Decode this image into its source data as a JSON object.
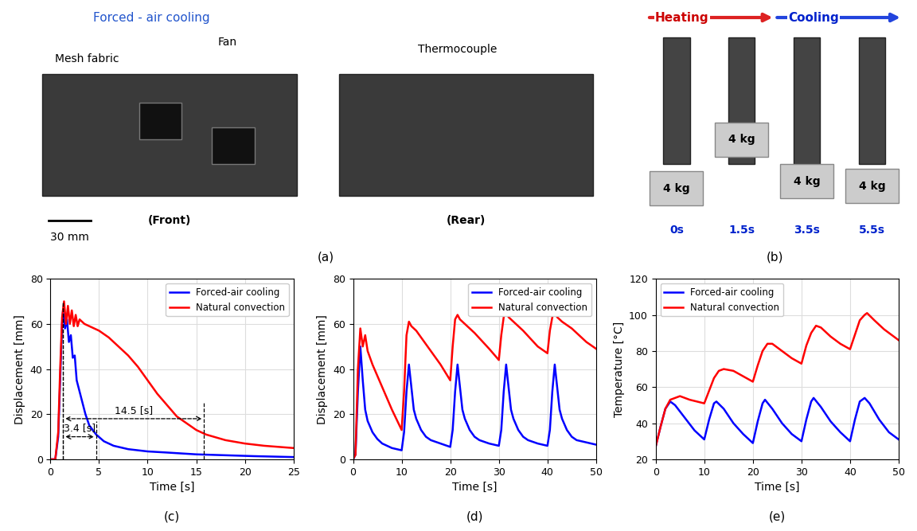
{
  "photos": [
    {
      "caption": "(a)",
      "texts": {
        "airflow": "Forced - air cooling",
        "fan": "Fan",
        "fabric": "Mesh fabric",
        "scale": "30 mm",
        "front": "(Front)",
        "thermocouple": "Thermocouple",
        "rear": "(Rear)"
      }
    },
    {
      "caption": "(b)",
      "texts": {
        "heating": "Heating",
        "cooling": "Cooling",
        "weight": "4 kg",
        "times": [
          "0s",
          "1.5s",
          "3.5s",
          "5.5s"
        ]
      }
    }
  ],
  "chart_data": [
    {
      "type": "line",
      "caption": "(c)",
      "x_label": "Time [s]",
      "y_label": "Displacement [mm]",
      "xlim": [
        0,
        25
      ],
      "xticks": [
        0,
        5,
        10,
        15,
        20,
        25
      ],
      "ylim": [
        0,
        80
      ],
      "yticks": [
        0,
        20,
        40,
        60,
        80
      ],
      "grid": true,
      "legend": "upper right",
      "series": [
        {
          "name": "Forced-air cooling",
          "color": "#0000ff",
          "x": [
            0,
            0.5,
            0.8,
            1.0,
            1.2,
            1.3,
            1.5,
            1.7,
            1.9,
            2.1,
            2.3,
            2.5,
            2.7,
            3.0,
            3.3,
            3.6,
            4.0,
            4.7,
            5.5,
            6.5,
            8,
            10,
            12,
            15,
            18,
            21,
            25
          ],
          "values": [
            0,
            0,
            10,
            35,
            60,
            66,
            58,
            62,
            52,
            55,
            45,
            46,
            35,
            30,
            25,
            20,
            15,
            11,
            8,
            6,
            4.5,
            3.5,
            3,
            2.2,
            1.8,
            1.4,
            1.0
          ]
        },
        {
          "name": "Natural convection",
          "color": "#ff0000",
          "x": [
            0,
            0.5,
            0.8,
            1.0,
            1.2,
            1.4,
            1.6,
            1.8,
            2.0,
            2.2,
            2.4,
            2.6,
            2.8,
            3.0,
            3.5,
            4,
            5,
            6,
            7,
            8,
            9,
            10,
            11,
            12,
            13,
            14,
            15,
            16,
            18,
            20,
            22,
            25
          ],
          "values": [
            0,
            0,
            12,
            40,
            63,
            70,
            60,
            68,
            60,
            66,
            59,
            64,
            59,
            62,
            60,
            59,
            57,
            54,
            50,
            46,
            41,
            35,
            29,
            24,
            19,
            16,
            13,
            11,
            8.5,
            7,
            6,
            5
          ]
        }
      ],
      "annotations": [
        {
          "text": "3.4 [s]",
          "x": [
            1.3,
            4.7
          ],
          "y": 10
        },
        {
          "text": "14.5 [s]",
          "x": [
            1.3,
            15.8
          ],
          "y": 18
        }
      ]
    },
    {
      "type": "line",
      "caption": "(d)",
      "x_label": "Time [s]",
      "y_label": "Displacement [mm]",
      "xlim": [
        0,
        50
      ],
      "xticks": [
        0,
        10,
        20,
        30,
        40,
        50
      ],
      "ylim": [
        0,
        80
      ],
      "yticks": [
        0,
        20,
        40,
        60,
        80
      ],
      "grid": true,
      "legend": "upper right",
      "series": [
        {
          "name": "Forced-air cooling",
          "color": "#0000ff",
          "x": [
            0,
            0.5,
            1.0,
            1.5,
            2.0,
            2.5,
            3,
            4,
            5,
            6,
            8,
            10,
            10.5,
            11,
            11.5,
            12,
            12.5,
            13,
            14,
            15,
            16,
            18,
            20,
            20.5,
            21,
            21.5,
            22,
            22.5,
            23,
            24,
            25,
            26,
            28,
            30,
            30.5,
            31,
            31.5,
            32,
            32.5,
            33,
            34,
            35,
            36,
            38,
            40,
            40.5,
            41,
            41.5,
            42,
            42.5,
            43,
            44,
            45,
            46,
            48,
            50
          ],
          "values": [
            0,
            2,
            30,
            50,
            35,
            22,
            17,
            12,
            9,
            7,
            5,
            4,
            12,
            30,
            42,
            32,
            22,
            18,
            13,
            10,
            8.5,
            7,
            5.5,
            13,
            30,
            42,
            32,
            22,
            18,
            13,
            10,
            8.5,
            7,
            6,
            13,
            30,
            42,
            32,
            22,
            18,
            13,
            10,
            8.5,
            7,
            6,
            13,
            30,
            42,
            32,
            22,
            18,
            13,
            10,
            8.5,
            7.5,
            6.5
          ]
        },
        {
          "name": "Natural convection",
          "color": "#ff0000",
          "x": [
            0,
            0.5,
            1,
            1.5,
            2,
            2.5,
            3,
            4,
            6,
            8,
            10,
            10.5,
            11,
            11.5,
            12,
            13,
            15,
            18,
            20,
            20.5,
            21,
            21.5,
            22,
            23,
            25,
            28,
            30,
            30.5,
            31,
            31.5,
            32,
            33,
            35,
            38,
            40,
            40.5,
            41,
            41.5,
            42,
            43,
            45,
            48,
            50
          ],
          "values": [
            0,
            2,
            40,
            58,
            50,
            55,
            48,
            42,
            32,
            22,
            13,
            30,
            55,
            61,
            59,
            57,
            51,
            42,
            35,
            50,
            62,
            64,
            62,
            60,
            56,
            49,
            44,
            55,
            63,
            65,
            63,
            61,
            57,
            50,
            47,
            57,
            63,
            65,
            63,
            61,
            58,
            52,
            49
          ]
        }
      ]
    },
    {
      "type": "line",
      "caption": "(e)",
      "x_label": "Time [s]",
      "y_label": "Temperature [°C]",
      "xlim": [
        0,
        50
      ],
      "xticks": [
        0,
        10,
        20,
        30,
        40,
        50
      ],
      "ylim": [
        20,
        120
      ],
      "yticks": [
        20,
        40,
        60,
        80,
        100,
        120
      ],
      "grid": true,
      "legend": "upper left",
      "series": [
        {
          "name": "Forced-air cooling",
          "color": "#0000ff",
          "x": [
            0,
            1,
            2,
            3,
            4,
            6,
            8,
            10,
            11,
            12,
            12.5,
            14,
            16,
            18,
            20,
            21,
            22,
            22.5,
            24,
            26,
            28,
            30,
            31,
            32,
            32.5,
            34,
            36,
            38,
            40,
            41,
            42,
            43,
            44,
            46,
            48,
            50
          ],
          "values": [
            27,
            38,
            48,
            52,
            50,
            43,
            36,
            31,
            42,
            51,
            52,
            48,
            40,
            34,
            29,
            41,
            51,
            53,
            48,
            40,
            34,
            30,
            42,
            52,
            54,
            49,
            41,
            35,
            30,
            42,
            52,
            54,
            51,
            42,
            35,
            31
          ]
        },
        {
          "name": "Natural convection",
          "color": "#ff0000",
          "x": [
            0,
            1,
            2,
            3,
            4,
            5,
            7,
            10,
            11,
            12,
            13,
            14,
            16,
            18,
            20,
            21,
            22,
            23,
            24,
            26,
            28,
            30,
            31,
            32,
            33,
            34,
            36,
            38,
            40,
            41,
            42,
            43,
            43.5,
            45,
            47,
            50
          ],
          "values": [
            27,
            38,
            48,
            53,
            54,
            55,
            53,
            51,
            58,
            65,
            69,
            70,
            69,
            66,
            63,
            72,
            80,
            84,
            84,
            80,
            76,
            73,
            83,
            90,
            94,
            93,
            88,
            84,
            81,
            89,
            97,
            100,
            101,
            97,
            92,
            86
          ]
        }
      ]
    }
  ]
}
